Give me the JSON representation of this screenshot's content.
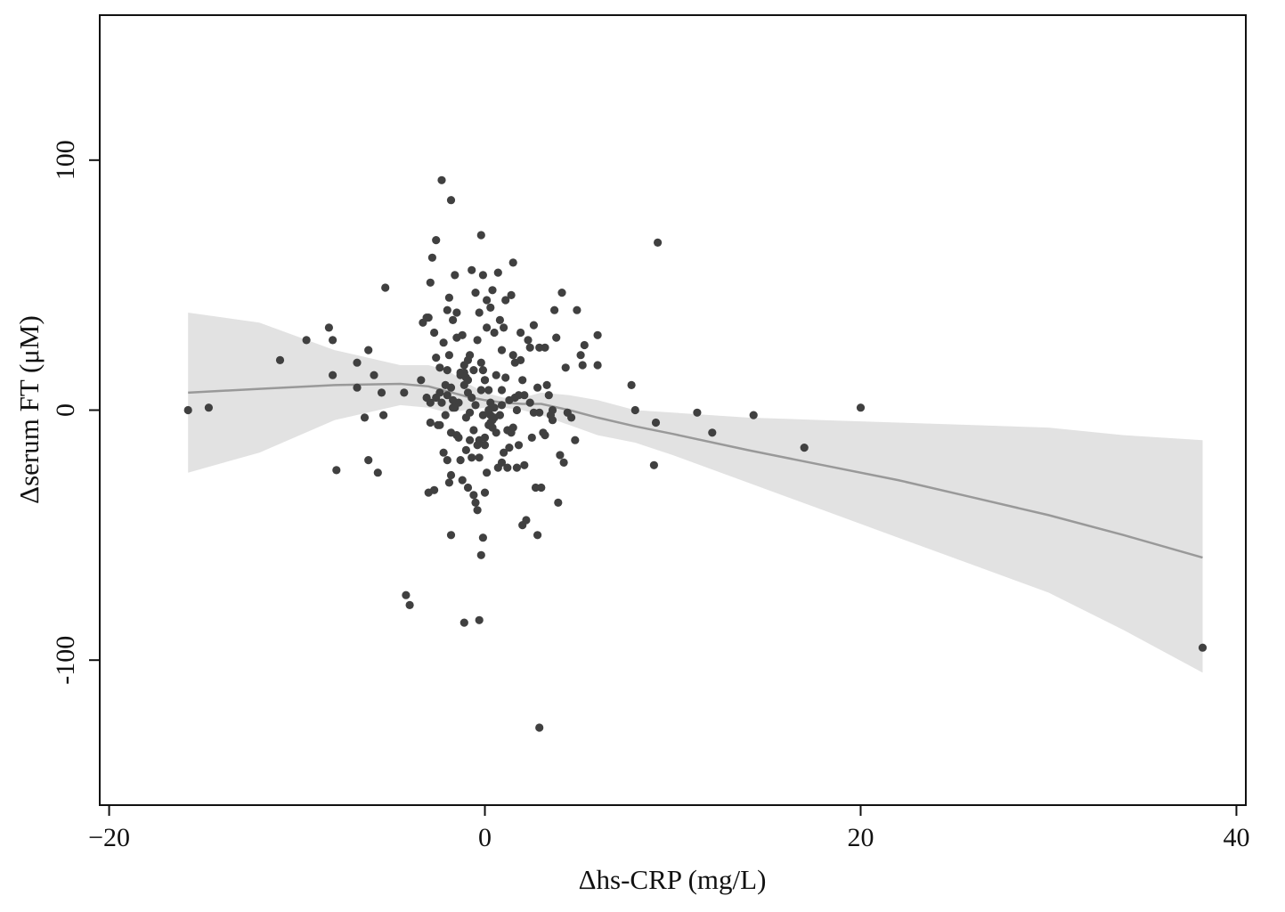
{
  "chart_data": {
    "type": "scatter",
    "title": "",
    "xlabel": "Δhs-CRP (mg/L)",
    "ylabel": "Δserum FT (μM)",
    "xlim": [
      -20.5,
      40.5
    ],
    "ylim": [
      -158,
      158
    ],
    "x_ticks": [
      -20,
      0,
      20,
      40
    ],
    "x_tick_labels": [
      "−20",
      "0",
      "20",
      "40"
    ],
    "y_ticks": [
      100,
      0,
      -100
    ],
    "y_tick_labels": [
      "100",
      "0",
      "-100"
    ],
    "grid": false,
    "legend": "none",
    "colors": {
      "points": "#404040",
      "fit_line": "#999999",
      "ci_band": "#e2e2e2",
      "axes": "#111111"
    },
    "series": [
      {
        "kind": "points",
        "x": [
          -15.8,
          -14.7,
          -10.9,
          -9.5,
          -8.3,
          -8.1,
          -7.9,
          -8.1,
          -6.8,
          -6.8,
          -6.4,
          -6.2,
          -6.2,
          -5.9,
          -5.7,
          -5.5,
          -5.4,
          -5.3,
          -4.3,
          -4.2,
          -3.4,
          -3.3,
          -3.1,
          -3.0,
          -2.9,
          -2.9,
          -2.8,
          -2.7,
          -2.6,
          -2.6,
          -2.5,
          -2.4,
          -2.3,
          -2.2,
          -2.1,
          -2.0,
          -2.0,
          -1.9,
          -1.9,
          -1.8,
          -1.8,
          -1.8,
          -1.7,
          -1.7,
          -1.6,
          -1.5,
          -1.5,
          -1.4,
          -1.3,
          -1.3,
          -1.2,
          -1.1,
          -1.1,
          -1.0,
          -1.0,
          -0.9,
          -0.9,
          -0.8,
          -0.8,
          -0.7,
          -0.7,
          -0.6,
          -0.6,
          -0.5,
          -0.5,
          -0.4,
          -0.4,
          -0.3,
          -0.3,
          -0.2,
          -0.2,
          -0.1,
          -0.1,
          0.0,
          0.0,
          0.1,
          0.1,
          0.2,
          0.2,
          0.3,
          0.3,
          0.4,
          0.4,
          0.5,
          0.5,
          0.6,
          0.7,
          0.8,
          0.9,
          1.0,
          1.1,
          1.2,
          1.3,
          1.4,
          1.5,
          1.6,
          1.7,
          1.8,
          1.9,
          2.0,
          2.2,
          2.4,
          2.6,
          2.8,
          3.0,
          3.2,
          3.4,
          3.6,
          3.8,
          4.0,
          4.3,
          4.6,
          4.9,
          5.2,
          -2.9,
          -2.7,
          -2.1,
          -1.8,
          -1.6,
          -1.4,
          -0.9,
          -0.4,
          -0.2,
          0.0,
          0.1,
          0.3,
          0.6,
          0.9,
          1.2,
          1.5,
          1.7,
          2.1,
          2.5,
          2.9,
          3.3,
          -3.1,
          -2.4,
          -1.9,
          -1.2,
          -0.7,
          -0.1,
          0.4,
          0.8,
          1.3,
          1.8,
          2.3,
          2.7,
          3.1,
          3.6,
          4.1,
          -2.6,
          -2.0,
          -1.5,
          -1.0,
          -0.5,
          0.0,
          0.5,
          1.0,
          1.6,
          2.1,
          2.6,
          3.2,
          3.7,
          4.4,
          5.1,
          -2.2,
          -1.7,
          -1.1,
          -0.6,
          0.2,
          0.7,
          1.1,
          1.4,
          1.9,
          2.4,
          2.8,
          3.5,
          4.2,
          4.8,
          5.3,
          -2.4,
          -1.3,
          -0.8,
          -0.3,
          0.3,
          0.9,
          1.5,
          2.0,
          2.9,
          3.9,
          -3.0,
          -2.0,
          -0.9,
          0.0,
          0.9,
          6.0,
          6.0,
          7.8,
          8.0,
          9.0,
          9.1,
          9.2,
          11.3,
          12.1,
          14.3,
          17.0,
          20.0,
          -2.3,
          -1.8,
          -0.1,
          -4.0,
          -1.1,
          -0.3,
          -0.2,
          2.9,
          38.2
        ],
        "y": [
          0,
          1,
          20,
          28,
          33,
          28,
          -24,
          14,
          19,
          9,
          -3,
          24,
          -20,
          14,
          -25,
          7,
          -2,
          49,
          7,
          -74,
          12,
          35,
          5,
          37,
          -5,
          51,
          61,
          31,
          21,
          68,
          -6,
          17,
          3,
          27,
          -2,
          40,
          6,
          45,
          22,
          -9,
          9,
          84,
          1,
          36,
          54,
          -10,
          39,
          3,
          -20,
          15,
          -28,
          10,
          18,
          -3,
          13,
          -31,
          7,
          -12,
          22,
          56,
          5,
          -8,
          16,
          -37,
          47,
          -40,
          28,
          -12,
          39,
          70,
          19,
          -2,
          54,
          12,
          -14,
          33,
          -25,
          8,
          -6,
          41,
          3,
          -4,
          48,
          1,
          31,
          -9,
          55,
          -2,
          24,
          -17,
          13,
          -23,
          4,
          46,
          59,
          19,
          0,
          -14,
          31,
          12,
          -44,
          25,
          -1,
          9,
          -31,
          25,
          6,
          -4,
          29,
          -18,
          17,
          -3,
          40,
          18,
          3,
          -32,
          10,
          -26,
          1,
          -11,
          20,
          -14,
          8,
          -33,
          44,
          -5,
          14,
          2,
          -8,
          22,
          -23,
          6,
          -11,
          25,
          10,
          37,
          7,
          -29,
          30,
          -19,
          16,
          -7,
          36,
          -15,
          6,
          28,
          -31,
          -9,
          0,
          47,
          5,
          -20,
          29,
          -16,
          2,
          12,
          -3,
          33,
          5,
          -22,
          34,
          -10,
          40,
          -1,
          22,
          -17,
          4,
          15,
          -34,
          0,
          -23,
          44,
          -9,
          20,
          3,
          -50,
          -2,
          -21,
          -12,
          26,
          -6,
          14,
          -1,
          -19,
          -2,
          8,
          -7,
          -46,
          -1,
          -37,
          -33,
          16,
          12,
          -11,
          -21,
          30,
          18,
          10,
          0,
          -22,
          -5,
          67,
          -1,
          -9,
          -2,
          -15,
          1,
          92,
          -50,
          -51,
          -78,
          -85,
          -84,
          -58,
          -127,
          -95
        ]
      },
      {
        "kind": "fit_line",
        "x": [
          -15.8,
          -12.0,
          -8.0,
          -4.5,
          -3.0,
          -2.0,
          -1.0,
          0.0,
          1.0,
          2.0,
          3.0,
          4.5,
          6.0,
          8.0,
          10.0,
          14.0,
          18.0,
          22.0,
          26.0,
          30.0,
          34.0,
          38.2
        ],
        "y": [
          7,
          8.5,
          10,
          10.5,
          9.5,
          7.5,
          5.5,
          4,
          3,
          2.5,
          2.5,
          0,
          -3,
          -6.5,
          -9.5,
          -16,
          -22,
          -28,
          -35,
          -42,
          -50,
          -59
        ]
      },
      {
        "kind": "ci_band",
        "x": [
          -15.8,
          -12.0,
          -8.0,
          -4.5,
          -3.0,
          -2.0,
          -1.0,
          0.0,
          1.0,
          2.0,
          3.0,
          4.5,
          6.0,
          8.0,
          10.0,
          14.0,
          18.0,
          22.0,
          26.0,
          30.0,
          34.0,
          38.2
        ],
        "upper": [
          39,
          35,
          24,
          18,
          18,
          16,
          11,
          7,
          5,
          5,
          7,
          6,
          4,
          0,
          -1,
          -3,
          -4,
          -5,
          -6,
          -7,
          -10,
          -12
        ],
        "lower": [
          -25,
          -17,
          -4,
          2,
          1,
          -1,
          0,
          1,
          1,
          0,
          -2,
          -6,
          -10,
          -13,
          -18,
          -29,
          -40,
          -51,
          -62,
          -73,
          -88,
          -105
        ]
      }
    ]
  }
}
